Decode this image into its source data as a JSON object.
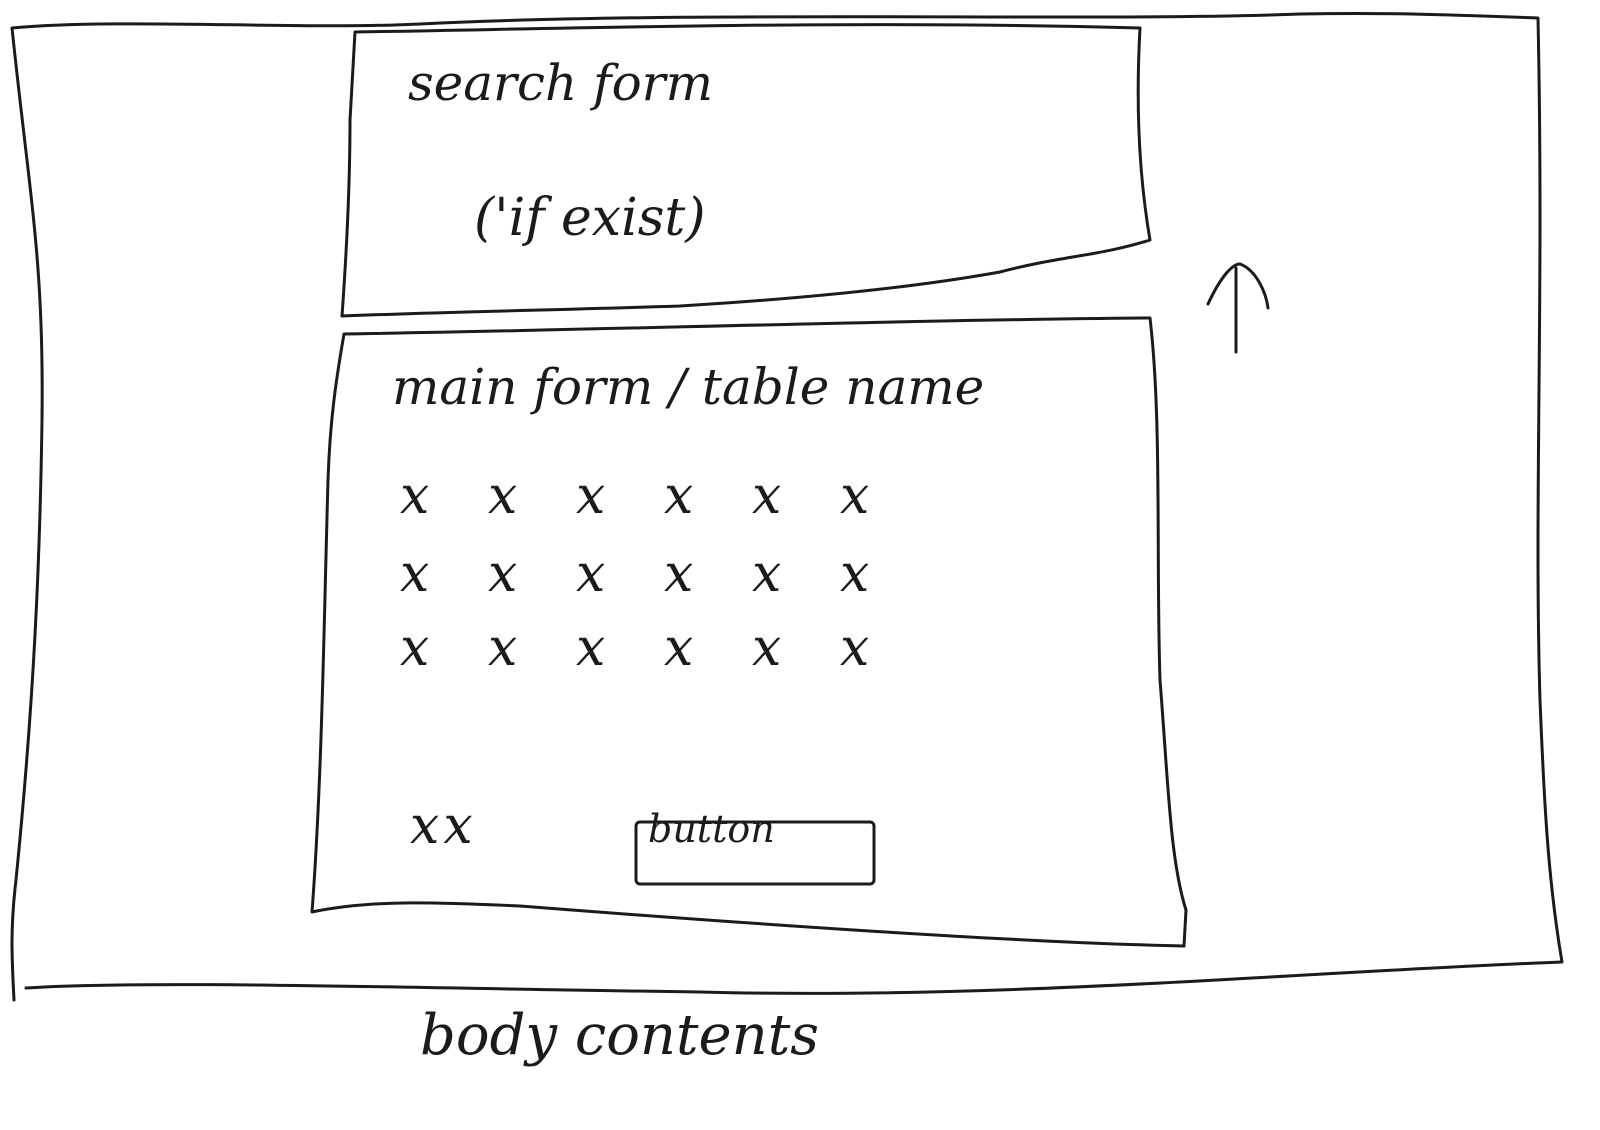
{
  "search_form": {
    "title": "search form",
    "note": "('if exist)"
  },
  "main_form": {
    "title": "main form / table name",
    "rows": [
      [
        "x",
        "x",
        "x",
        "x",
        "x",
        "x"
      ],
      [
        "x",
        "x",
        "x",
        "x",
        "x",
        "x"
      ],
      [
        "x",
        "x",
        "x",
        "x",
        "x",
        "x"
      ]
    ],
    "footer_marks": "xx",
    "button_label": "button"
  },
  "caption": "body contents",
  "scroll_indicator_icon": "arrow-up-icon",
  "colors": {
    "ink": "#1b1b1b",
    "paper": "#ffffff"
  }
}
